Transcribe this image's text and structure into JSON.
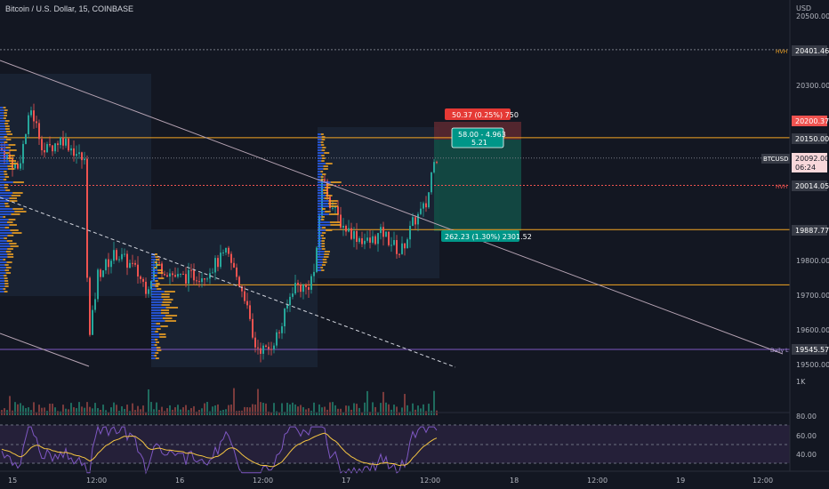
{
  "header": {
    "symbol_title": "Bitcoin / U.S. Dollar, 15, COINBASE"
  },
  "axis": {
    "currency": "USD",
    "ticks": [
      "20500.00",
      "20300.00",
      "19800.00",
      "19700.00",
      "19600.00",
      "19500.00"
    ],
    "x_ticks": [
      "15",
      "12:00",
      "16",
      "12:00",
      "17",
      "12:00",
      "18",
      "12:00",
      "19",
      "12:00"
    ],
    "volume_tick": "1K",
    "rsi_ticks": [
      "80.00",
      "60.00",
      "40.00"
    ]
  },
  "price_labels": {
    "hvh": {
      "tag": "HVH",
      "value": "20401.46"
    },
    "target": {
      "value": "20200.37"
    },
    "level_20150": {
      "value": "20150.00"
    },
    "last": {
      "symbol": "BTCUSD",
      "value": "20092.00",
      "countdown": "06:24"
    },
    "hvl": {
      "tag": "HVH",
      "value": "20014.05"
    },
    "level_19887": {
      "value": "19887.77"
    },
    "daily_low": {
      "tag": "Daily L",
      "value": "19545.57"
    }
  },
  "position": {
    "stop_label": "50.37 (0.25%) 750",
    "mid_label_line1": "58.00 - 4.963",
    "mid_label_line2": "5.21",
    "target_label": "262.23 (1.30%) 2301.52"
  },
  "colors": {
    "background": "#131722",
    "up": "#26a69a",
    "down": "#ef5350",
    "orange": "#f5a623",
    "purple": "#7e57c2",
    "trend": "#b7a4b4"
  },
  "chart_data": {
    "type": "candlestick",
    "title": "Bitcoin / U.S. Dollar, 15, COINBASE",
    "yrange": [
      19500,
      20500
    ],
    "levels": [
      20401.46,
      20200.37,
      20150.0,
      20092.0,
      20014.05,
      19887.77,
      19730,
      19545.57
    ],
    "rsi_range": [
      30,
      80
    ]
  }
}
